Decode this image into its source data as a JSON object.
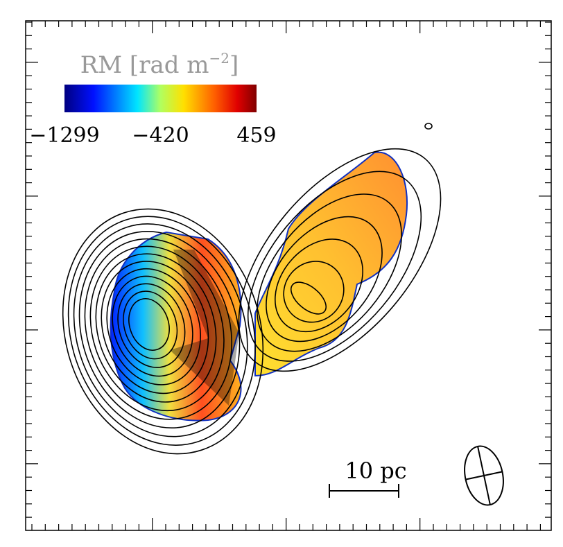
{
  "colorbar": {
    "label": [
      "RM [rad m",
      "−2",
      "]"
    ],
    "lim": [
      -1299,
      459
    ],
    "ticks": [
      {
        "value": -1299,
        "label": "−1299"
      },
      {
        "value": -420,
        "label": "−420"
      },
      {
        "value": 459,
        "label": "459"
      }
    ]
  },
  "scale_bar": {
    "label": "10 pc"
  }
}
